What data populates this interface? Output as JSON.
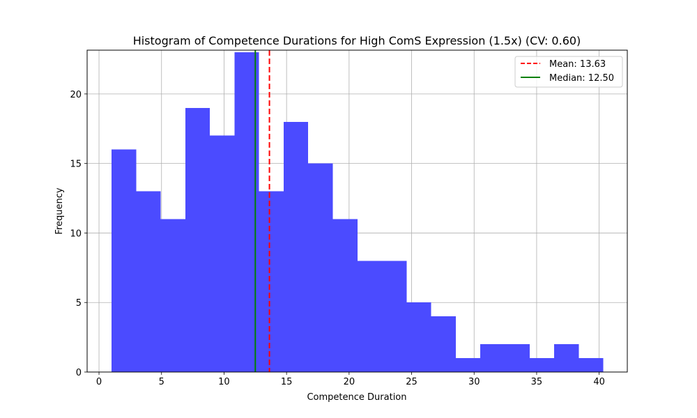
{
  "chart_data": {
    "type": "bar",
    "title": "Histogram of Competence Durations for High ComS Expression (1.5x) (CV: 0.60)",
    "xlabel": "Competence Duration",
    "ylabel": "Frequency",
    "xlim": [
      -0.95,
      42.25
    ],
    "ylim": [
      0,
      23.15
    ],
    "xticks": [
      0,
      5,
      10,
      15,
      20,
      25,
      30,
      35,
      40
    ],
    "yticks": [
      0,
      5,
      10,
      15,
      20
    ],
    "grid": true,
    "bar_color": "#4b4bff",
    "bin_edges": [
      1.0,
      2.967,
      4.933,
      6.9,
      8.867,
      10.833,
      12.8,
      14.767,
      16.733,
      18.7,
      20.667,
      22.633,
      24.6,
      26.567,
      28.533,
      30.5,
      32.467,
      34.433,
      36.4,
      38.367,
      40.333
    ],
    "values": [
      16,
      13,
      11,
      19,
      17,
      23,
      13,
      18,
      15,
      11,
      8,
      8,
      5,
      4,
      1,
      2,
      2,
      1,
      2,
      1
    ],
    "reference_lines": [
      {
        "label": "Mean: 13.63",
        "x": 13.63,
        "color": "#ff0000",
        "style": "dashed"
      },
      {
        "label": "Median: 12.50",
        "x": 12.5,
        "color": "#008000",
        "style": "solid"
      }
    ],
    "legend_position": "top-right"
  }
}
